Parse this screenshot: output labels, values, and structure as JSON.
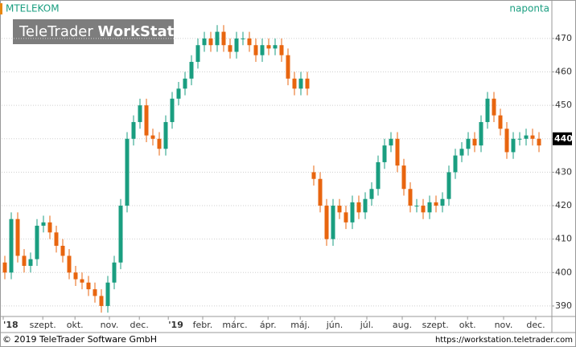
{
  "chart_data": {
    "type": "candlestick",
    "title": "MTELEKOM",
    "period": "naponta",
    "watermark": {
      "light": "TeleTrader",
      "bold": "WorkStation"
    },
    "footer_left": "© 2019 TeleTrader Software GmbH",
    "footer_right": "https://workstation.teletrader.com",
    "up_color": "#1a9e80",
    "down_color": "#e8650f",
    "grid": true,
    "xlim": [
      0,
      85.5
    ],
    "ylim": [
      387.1,
      476.7
    ],
    "yticks": [
      390,
      400,
      410,
      420,
      430,
      440,
      450,
      460,
      470
    ],
    "xticks": [
      {
        "value": 0.25,
        "label": "'18"
      },
      {
        "value": 6.4,
        "label": "szept."
      },
      {
        "value": 11.4,
        "label": "okt."
      },
      {
        "value": 16.75,
        "label": "nov."
      },
      {
        "value": 21.4,
        "label": "dec."
      },
      {
        "value": 25.9,
        "label": "'19"
      },
      {
        "value": 31.25,
        "label": "febr."
      },
      {
        "value": 36.25,
        "label": "márc."
      },
      {
        "value": 41.4,
        "label": "ápr."
      },
      {
        "value": 46.4,
        "label": "máj."
      },
      {
        "value": 51.75,
        "label": "jún."
      },
      {
        "value": 56.75,
        "label": "júl."
      },
      {
        "value": 62.25,
        "label": "aug."
      },
      {
        "value": 67.4,
        "label": "szept."
      },
      {
        "value": 72.4,
        "label": "okt."
      },
      {
        "value": 78,
        "label": "nov."
      },
      {
        "value": 83,
        "label": "dec."
      }
    ],
    "last_value": 440,
    "open": [
      403,
      400,
      416,
      405,
      402,
      404,
      414,
      415,
      412,
      408,
      405,
      400,
      398,
      397,
      395,
      393,
      390,
      397,
      403,
      420,
      440,
      445,
      450,
      441,
      440,
      437,
      445,
      452,
      455,
      458,
      463,
      468,
      470,
      468,
      472,
      468,
      466,
      470,
      470,
      468,
      465,
      468,
      467,
      468,
      465,
      458,
      455,
      458,
      430,
      428,
      420,
      410,
      420,
      418,
      415,
      421,
      418,
      422,
      425,
      433,
      438,
      440,
      432,
      425,
      420,
      420,
      418,
      421,
      420,
      422,
      430,
      435,
      437,
      440,
      438,
      445,
      452,
      447,
      443,
      436,
      440,
      440,
      441,
      440
    ],
    "high": [
      405,
      418,
      418,
      407,
      406,
      416,
      417,
      417,
      414,
      410,
      407,
      402,
      400,
      399,
      397,
      395,
      399,
      405,
      422,
      442,
      447,
      452,
      452,
      443,
      442,
      447,
      454,
      457,
      460,
      465,
      470,
      472,
      472,
      474,
      474,
      470,
      472,
      472,
      472,
      470,
      470,
      470,
      470,
      470,
      467,
      460,
      460,
      460,
      432,
      430,
      422,
      422,
      422,
      420,
      423,
      423,
      424,
      427,
      435,
      440,
      442,
      442,
      434,
      427,
      422,
      422,
      423,
      423,
      424,
      432,
      437,
      439,
      442,
      442,
      447,
      454,
      454,
      449,
      445,
      442,
      442,
      443,
      443,
      442
    ],
    "low": [
      398,
      398,
      403,
      400,
      400,
      402,
      412,
      410,
      406,
      403,
      398,
      396,
      395,
      393,
      391,
      388,
      388,
      395,
      401,
      418,
      438,
      443,
      439,
      438,
      435,
      435,
      443,
      450,
      453,
      456,
      461,
      466,
      466,
      466,
      466,
      464,
      464,
      468,
      466,
      463,
      463,
      465,
      465,
      463,
      456,
      453,
      453,
      453,
      426,
      418,
      408,
      408,
      416,
      413,
      413,
      416,
      416,
      420,
      423,
      431,
      436,
      430,
      423,
      418,
      418,
      416,
      416,
      418,
      418,
      420,
      428,
      433,
      435,
      436,
      436,
      443,
      445,
      441,
      434,
      434,
      438,
      438,
      438,
      436
    ],
    "close": [
      400,
      416,
      405,
      402,
      404,
      414,
      415,
      412,
      408,
      405,
      400,
      398,
      397,
      395,
      393,
      390,
      397,
      403,
      420,
      440,
      445,
      450,
      441,
      440,
      437,
      445,
      452,
      455,
      458,
      463,
      468,
      470,
      468,
      472,
      468,
      466,
      470,
      470,
      468,
      465,
      468,
      467,
      468,
      465,
      458,
      455,
      458,
      455,
      428,
      420,
      410,
      420,
      418,
      415,
      421,
      418,
      422,
      425,
      433,
      438,
      440,
      432,
      425,
      420,
      420,
      418,
      421,
      420,
      422,
      430,
      435,
      437,
      440,
      438,
      445,
      452,
      447,
      443,
      436,
      440,
      440,
      441,
      440,
      438
    ]
  }
}
